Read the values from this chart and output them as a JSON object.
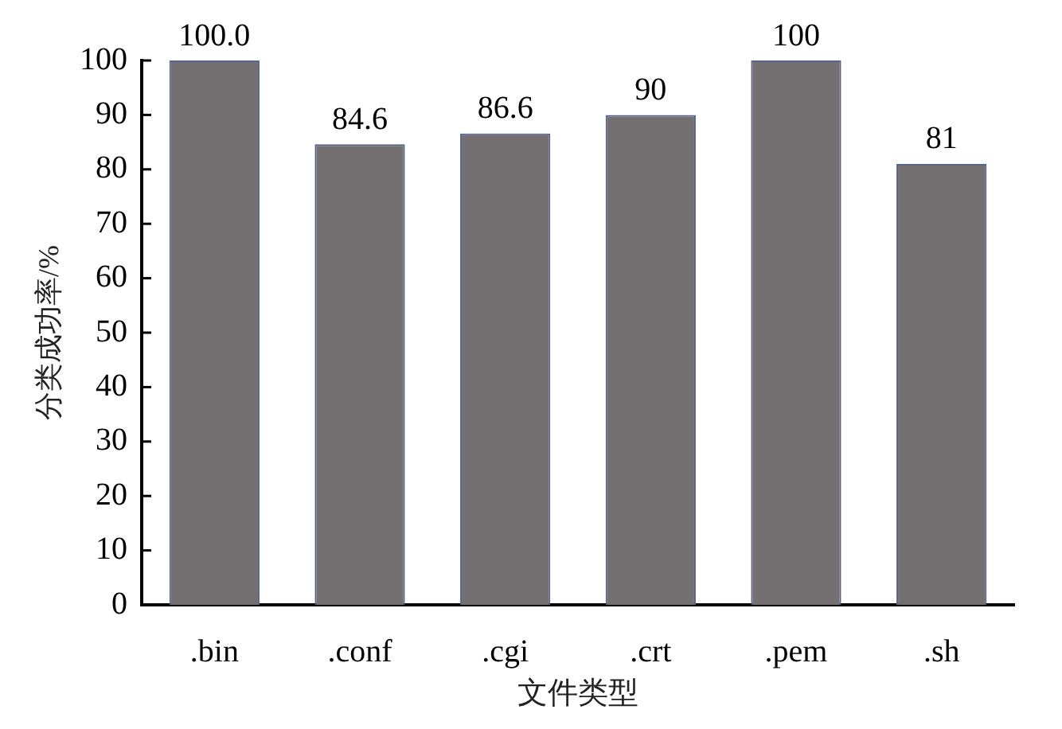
{
  "chart_data": {
    "type": "bar",
    "xlabel": "文件类型",
    "ylabel": "分类成功率/%",
    "categories": [
      ".bin",
      ".conf",
      ".cgi",
      ".crt",
      ".pem",
      ".sh"
    ],
    "values": [
      100,
      84.6,
      86.6,
      90,
      100,
      81
    ],
    "value_labels": [
      "100.0",
      "84.6",
      "86.6",
      "90",
      "100",
      "81"
    ],
    "color": "#747071",
    "ylim": [
      0,
      100
    ],
    "yticks": [
      0,
      10,
      20,
      30,
      40,
      50,
      60,
      70,
      80,
      90,
      100
    ],
    "grid": false,
    "legend": false
  }
}
